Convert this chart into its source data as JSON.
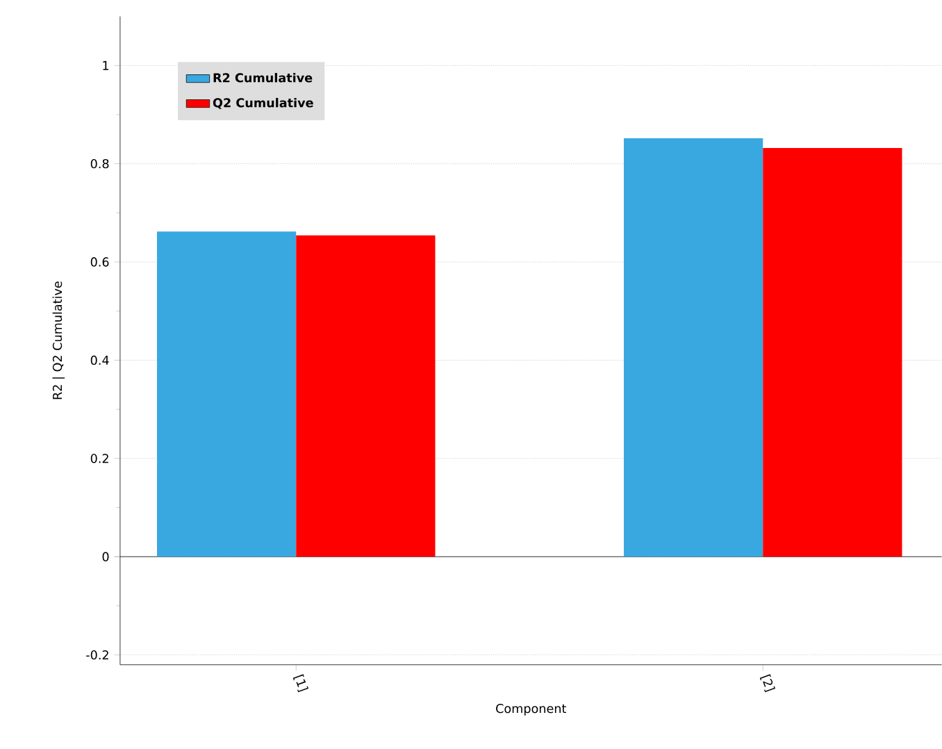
{
  "chart_data": {
    "type": "bar",
    "xlabel": "Component",
    "ylabel": "R2 | Q2 Cumulative",
    "categories": [
      "[1]",
      "[2]"
    ],
    "series": [
      {
        "name": "R2 Cumulative",
        "color": "#3aa8e0",
        "values": [
          0.662,
          0.852
        ]
      },
      {
        "name": "Q2 Cumulative",
        "color": "#ff0000",
        "values": [
          0.654,
          0.832
        ]
      }
    ],
    "ylim": [
      -0.22,
      1.1
    ],
    "yticks": [
      -0.2,
      0,
      0.2,
      0.4,
      0.6,
      0.8,
      1
    ],
    "grid": "y",
    "legend": "top left"
  }
}
